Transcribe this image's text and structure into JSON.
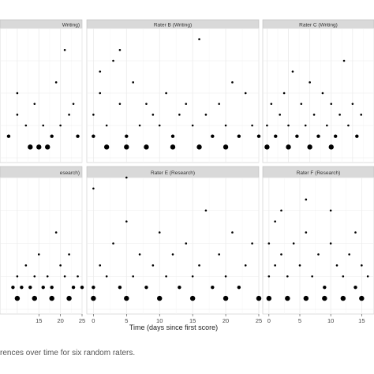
{
  "caption": "rences over time for six random raters.",
  "colors": {
    "panel_bg": "#ffffff",
    "strip_bg": "#d9d9d9",
    "grid_major": "#ebebeb",
    "grid_minor": "#f5f5f5",
    "point": "#000000",
    "text": "#333333"
  },
  "chart_data": {
    "type": "scatter",
    "facets": [
      "Writing)",
      "Rater B (Writing)",
      "Rater C (Writing)",
      "esearch)",
      "Rater E (Research)",
      "Rater F (Research)"
    ],
    "xlabel": "Time (days since first score)",
    "xlim": [
      -1,
      25
    ],
    "xticks": [
      "0",
      "5",
      "10",
      "15",
      "20",
      "25"
    ],
    "x_tick_values": [
      0,
      5,
      10,
      15,
      20,
      25
    ],
    "visible_tick_labels": {
      "Writing)": [],
      "Rater B (Writing)": [],
      "Rater C (Writing)": [],
      "esearch)": [
        "15",
        "20",
        "25"
      ],
      "Rater E (Research)": [
        "0",
        "5",
        "10",
        "15",
        "20",
        "25"
      ],
      "Rater F (Research)": [
        "0",
        "5",
        "10",
        "15"
      ]
    },
    "point_size_note": "marker size reflects number of overlapping observations",
    "ylim": [
      0,
      12
    ],
    "grid": true,
    "panels": [
      {
        "facet": "Writing)",
        "x_domain": [
          6,
          25
        ],
        "points": [
          [
            8,
            2
          ],
          [
            10,
            4
          ],
          [
            12,
            3
          ],
          [
            14,
            5
          ],
          [
            16,
            3
          ],
          [
            18,
            2
          ],
          [
            19,
            7
          ],
          [
            20,
            3
          ],
          [
            21,
            10
          ],
          [
            22,
            4
          ],
          [
            23,
            5
          ],
          [
            24,
            2
          ],
          [
            10,
            6
          ],
          [
            13,
            1
          ],
          [
            15,
            1
          ],
          [
            17,
            1
          ]
        ]
      },
      {
        "facet": "Rater B (Writing)",
        "x_domain": [
          -1,
          25
        ],
        "points": [
          [
            0,
            2
          ],
          [
            0,
            4
          ],
          [
            1,
            6
          ],
          [
            1,
            8
          ],
          [
            2,
            3
          ],
          [
            3,
            9
          ],
          [
            4,
            5
          ],
          [
            4,
            10
          ],
          [
            5,
            2
          ],
          [
            6,
            7
          ],
          [
            7,
            3
          ],
          [
            8,
            5
          ],
          [
            9,
            4
          ],
          [
            10,
            3
          ],
          [
            11,
            6
          ],
          [
            12,
            2
          ],
          [
            13,
            4
          ],
          [
            14,
            5
          ],
          [
            15,
            3
          ],
          [
            16,
            11
          ],
          [
            17,
            4
          ],
          [
            18,
            2
          ],
          [
            19,
            5
          ],
          [
            20,
            3
          ],
          [
            21,
            7
          ],
          [
            22,
            2
          ],
          [
            23,
            6
          ],
          [
            24,
            3
          ],
          [
            25,
            2
          ],
          [
            2,
            1
          ],
          [
            5,
            1
          ],
          [
            8,
            1
          ],
          [
            12,
            1
          ],
          [
            16,
            1
          ],
          [
            20,
            1
          ]
        ]
      },
      {
        "facet": "Rater C (Writing)",
        "x_domain": [
          -1,
          25
        ],
        "points": [
          [
            0,
            3
          ],
          [
            1,
            5
          ],
          [
            2,
            2
          ],
          [
            3,
            4
          ],
          [
            4,
            6
          ],
          [
            5,
            3
          ],
          [
            6,
            8
          ],
          [
            7,
            2
          ],
          [
            8,
            5
          ],
          [
            9,
            3
          ],
          [
            10,
            7
          ],
          [
            11,
            4
          ],
          [
            12,
            2
          ],
          [
            13,
            6
          ],
          [
            14,
            3
          ],
          [
            15,
            5
          ],
          [
            16,
            2
          ],
          [
            17,
            4
          ],
          [
            18,
            9
          ],
          [
            19,
            3
          ],
          [
            20,
            5
          ],
          [
            21,
            2
          ],
          [
            22,
            4
          ],
          [
            0,
            1
          ],
          [
            5,
            1
          ],
          [
            10,
            1
          ],
          [
            15,
            1
          ]
        ]
      },
      {
        "facet": "esearch)",
        "x_domain": [
          6,
          25
        ],
        "points": [
          [
            9,
            2
          ],
          [
            10,
            3
          ],
          [
            11,
            2
          ],
          [
            12,
            4
          ],
          [
            13,
            2
          ],
          [
            14,
            3
          ],
          [
            15,
            5
          ],
          [
            16,
            2
          ],
          [
            17,
            3
          ],
          [
            18,
            2
          ],
          [
            19,
            7
          ],
          [
            20,
            4
          ],
          [
            21,
            3
          ],
          [
            22,
            5
          ],
          [
            23,
            2
          ],
          [
            24,
            3
          ],
          [
            25,
            2
          ],
          [
            10,
            1
          ],
          [
            14,
            1
          ],
          [
            18,
            1
          ],
          [
            22,
            1
          ]
        ]
      },
      {
        "facet": "Rater E (Research)",
        "x_domain": [
          -1,
          25
        ],
        "points": [
          [
            0,
            2
          ],
          [
            0,
            11
          ],
          [
            1,
            4
          ],
          [
            2,
            3
          ],
          [
            3,
            6
          ],
          [
            4,
            2
          ],
          [
            5,
            8
          ],
          [
            5,
            12
          ],
          [
            6,
            3
          ],
          [
            7,
            5
          ],
          [
            8,
            2
          ],
          [
            9,
            4
          ],
          [
            10,
            7
          ],
          [
            11,
            3
          ],
          [
            12,
            5
          ],
          [
            13,
            2
          ],
          [
            14,
            6
          ],
          [
            15,
            3
          ],
          [
            16,
            4
          ],
          [
            17,
            9
          ],
          [
            18,
            2
          ],
          [
            19,
            5
          ],
          [
            20,
            3
          ],
          [
            21,
            7
          ],
          [
            22,
            2
          ],
          [
            23,
            4
          ],
          [
            24,
            6
          ],
          [
            0,
            1
          ],
          [
            5,
            1
          ],
          [
            10,
            1
          ],
          [
            15,
            1
          ],
          [
            20,
            1
          ],
          [
            25,
            1
          ]
        ]
      },
      {
        "facet": "Rater F (Research)",
        "x_domain": [
          -1,
          17
        ],
        "points": [
          [
            0,
            3
          ],
          [
            0,
            6
          ],
          [
            1,
            4
          ],
          [
            1,
            8
          ],
          [
            2,
            5
          ],
          [
            3,
            3
          ],
          [
            4,
            6
          ],
          [
            5,
            4
          ],
          [
            6,
            7
          ],
          [
            7,
            3
          ],
          [
            8,
            5
          ],
          [
            9,
            2
          ],
          [
            10,
            6
          ],
          [
            11,
            4
          ],
          [
            12,
            3
          ],
          [
            13,
            5
          ],
          [
            14,
            2
          ],
          [
            15,
            4
          ],
          [
            16,
            3
          ],
          [
            2,
            9
          ],
          [
            6,
            10
          ],
          [
            10,
            9
          ],
          [
            14,
            7
          ],
          [
            0,
            1
          ],
          [
            3,
            1
          ],
          [
            6,
            1
          ],
          [
            9,
            1
          ],
          [
            12,
            1
          ],
          [
            15,
            1
          ]
        ]
      }
    ]
  }
}
